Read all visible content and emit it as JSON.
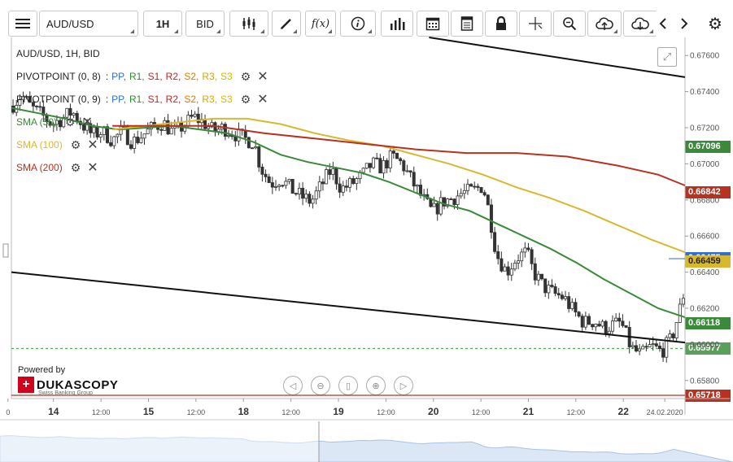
{
  "toolbar": {
    "symbol": "AUD/USD",
    "timeframe": "1H",
    "price_side": "BID",
    "colors": {
      "border": "#c8c8c8"
    }
  },
  "legend": {
    "header": "AUD/USD, 1H, BID",
    "pivot_rows": [
      {
        "name": "PIVOTPOINT (0, 8)",
        "sep": ":",
        "levels": [
          "PP,",
          "R1,",
          "S1,",
          "R2,",
          "S2,",
          "R3,",
          "S3"
        ]
      },
      {
        "name": "PIVOTPOINT (0, 9)",
        "sep": ":",
        "levels": [
          "PP,",
          "R1,",
          "S1,",
          "R2,",
          "S2,",
          "R3,",
          "S3"
        ]
      }
    ],
    "level_colors": [
      "#2f6fd6",
      "#2e8b2e",
      "#cc2222",
      "#cc2222",
      "#e07b00",
      "#d4a800",
      "#d4b800"
    ],
    "sma_rows": [
      {
        "label": "SMA (50)",
        "color": "#3a8a3a"
      },
      {
        "label": "SMA (100)",
        "color": "#d9b830"
      },
      {
        "label": "SMA (200)",
        "color": "#b83220"
      }
    ]
  },
  "branding": {
    "powered_by": "Powered by",
    "name": "DUKASCOPY",
    "tagline": "Swiss Banking Group"
  },
  "chart_data": {
    "type": "candlestick",
    "title": "AUD/USD, 1H, BID",
    "y_axis": {
      "ticks": [
        0.658,
        0.66,
        0.662,
        0.664,
        0.666,
        0.668,
        0.67,
        0.672,
        0.674,
        0.676
      ],
      "tick_labels": [
        "0.65800",
        "0.66000",
        "0.66200",
        "0.66400",
        "0.66600",
        "0.66800",
        "0.67000",
        "0.67200",
        "0.67400",
        "0.67600"
      ],
      "range": [
        0.657,
        0.677
      ]
    },
    "x_axis": {
      "labels": [
        {
          "label": "0",
          "t": -1.0,
          "bold": false
        },
        {
          "label": "14",
          "t": 12.5,
          "bold": true
        },
        {
          "label": "12:00",
          "t": 26.6,
          "bold": false
        },
        {
          "label": "15",
          "t": 40.7,
          "bold": true
        },
        {
          "label": "12:00",
          "t": 54.8,
          "bold": false
        },
        {
          "label": "18",
          "t": 68.9,
          "bold": true
        },
        {
          "label": "12:00",
          "t": 83.0,
          "bold": false
        },
        {
          "label": "19",
          "t": 97.1,
          "bold": true
        },
        {
          "label": "12:00",
          "t": 111.2,
          "bold": false
        },
        {
          "label": "20",
          "t": 125.3,
          "bold": true
        },
        {
          "label": "12:00",
          "t": 139.4,
          "bold": false
        },
        {
          "label": "21",
          "t": 153.5,
          "bold": true
        },
        {
          "label": "12:00",
          "t": 167.6,
          "bold": false
        },
        {
          "label": "22",
          "t": 181.7,
          "bold": true
        },
        {
          "label": "24.02.2020",
          "t": 194.0,
          "bold": false
        }
      ],
      "range": [
        0,
        200
      ]
    },
    "price_tags": [
      {
        "value": 0.67096,
        "label": "0.67096",
        "color": "#3a8a3a"
      },
      {
        "value": 0.66842,
        "label": "0.66842",
        "color": "#b83220"
      },
      {
        "value": 0.66475,
        "label": "0.66475",
        "color": "#2f6fd6"
      },
      {
        "value": 0.66459,
        "label": "0.66459",
        "color": "#d9b830"
      },
      {
        "value": 0.66118,
        "label": "0.66118",
        "color": "#3a8a3a"
      },
      {
        "value": 0.65977,
        "label": "0.65977",
        "color": "#5aa05a"
      },
      {
        "value": 0.65718,
        "label": "0.65718",
        "color": "#b83220"
      }
    ],
    "sma_series": [
      {
        "name": "SMA (50)",
        "color": "#3a8a3a",
        "points": [
          [
            0,
            0.6731
          ],
          [
            8,
            0.6728
          ],
          [
            16,
            0.6725
          ],
          [
            24,
            0.6721
          ],
          [
            32,
            0.6719
          ],
          [
            40,
            0.672
          ],
          [
            48,
            0.6721
          ],
          [
            56,
            0.6719
          ],
          [
            64,
            0.6717
          ],
          [
            72,
            0.6712
          ],
          [
            80,
            0.6705
          ],
          [
            88,
            0.6701
          ],
          [
            96,
            0.6698
          ],
          [
            104,
            0.6695
          ],
          [
            112,
            0.669
          ],
          [
            120,
            0.6684
          ],
          [
            128,
            0.6678
          ],
          [
            136,
            0.6674
          ],
          [
            144,
            0.6667
          ],
          [
            152,
            0.666
          ],
          [
            160,
            0.6653
          ],
          [
            168,
            0.6645
          ],
          [
            176,
            0.6636
          ],
          [
            184,
            0.6628
          ],
          [
            192,
            0.662
          ],
          [
            200,
            0.6615
          ]
        ]
      },
      {
        "name": "SMA (100)",
        "color": "#d9b830",
        "points": [
          [
            30,
            0.6719
          ],
          [
            40,
            0.6721
          ],
          [
            50,
            0.6723
          ],
          [
            60,
            0.6725
          ],
          [
            70,
            0.6725
          ],
          [
            80,
            0.6722
          ],
          [
            90,
            0.6717
          ],
          [
            100,
            0.6713
          ],
          [
            110,
            0.671
          ],
          [
            120,
            0.6705
          ],
          [
            130,
            0.67
          ],
          [
            140,
            0.6694
          ],
          [
            150,
            0.6687
          ],
          [
            160,
            0.6681
          ],
          [
            170,
            0.6674
          ],
          [
            180,
            0.6666
          ],
          [
            190,
            0.6658
          ],
          [
            200,
            0.6651
          ]
        ]
      },
      {
        "name": "SMA (200)",
        "color": "#b83220",
        "points": [
          [
            30,
            0.6721
          ],
          [
            45,
            0.6721
          ],
          [
            60,
            0.6721
          ],
          [
            75,
            0.6717
          ],
          [
            90,
            0.6714
          ],
          [
            105,
            0.6711
          ],
          [
            120,
            0.6708
          ],
          [
            135,
            0.6706
          ],
          [
            150,
            0.6706
          ],
          [
            165,
            0.6704
          ],
          [
            180,
            0.6699
          ],
          [
            192,
            0.6694
          ],
          [
            200,
            0.6688
          ]
        ]
      }
    ],
    "trendlines": [
      {
        "from": [
          124,
          0.677
        ],
        "to": [
          200,
          0.6748
        ],
        "color": "#111111"
      },
      {
        "from": [
          0,
          0.664
        ],
        "to": [
          200,
          0.6601
        ],
        "color": "#111111"
      }
    ],
    "horizontal_lines": [
      {
        "value": 0.65718,
        "color": "#b83220",
        "style": "solid"
      },
      {
        "value": 0.65977,
        "color": "#5aa05a",
        "style": "dashed"
      }
    ],
    "close_path": [
      [
        0,
        0.6732
      ],
      [
        3,
        0.6738
      ],
      [
        6,
        0.6731
      ],
      [
        9,
        0.6727
      ],
      [
        12,
        0.6722
      ],
      [
        15,
        0.6725
      ],
      [
        18,
        0.6729
      ],
      [
        21,
        0.6722
      ],
      [
        24,
        0.6716
      ],
      [
        27,
        0.6718
      ],
      [
        30,
        0.6713
      ],
      [
        33,
        0.6718
      ],
      [
        36,
        0.6712
      ],
      [
        39,
        0.6716
      ],
      [
        42,
        0.672
      ],
      [
        45,
        0.6723
      ],
      [
        48,
        0.6717
      ],
      [
        51,
        0.6721
      ],
      [
        54,
        0.6726
      ],
      [
        57,
        0.6723
      ],
      [
        60,
        0.6718
      ],
      [
        63,
        0.672
      ],
      [
        66,
        0.6717
      ],
      [
        69,
        0.6714
      ],
      [
        72,
        0.6712
      ],
      [
        74,
        0.6698
      ],
      [
        77,
        0.6689
      ],
      [
        80,
        0.6692
      ],
      [
        83,
        0.6686
      ],
      [
        86,
        0.6682
      ],
      [
        89,
        0.6679
      ],
      [
        92,
        0.6688
      ],
      [
        95,
        0.6697
      ],
      [
        98,
        0.6686
      ],
      [
        101,
        0.6689
      ],
      [
        104,
        0.6693
      ],
      [
        107,
        0.67
      ],
      [
        110,
        0.6698
      ],
      [
        113,
        0.6704
      ],
      [
        116,
        0.67
      ],
      [
        119,
        0.669
      ],
      [
        122,
        0.6681
      ],
      [
        125,
        0.6673
      ],
      [
        128,
        0.6679
      ],
      [
        131,
        0.6681
      ],
      [
        134,
        0.6684
      ],
      [
        137,
        0.6685
      ],
      [
        140,
        0.6688
      ],
      [
        142,
        0.6672
      ],
      [
        144,
        0.665
      ],
      [
        147,
        0.664
      ],
      [
        150,
        0.6648
      ],
      [
        153,
        0.6651
      ],
      [
        155,
        0.664
      ],
      [
        158,
        0.6632
      ],
      [
        161,
        0.6628
      ],
      [
        164,
        0.6626
      ],
      [
        167,
        0.6618
      ],
      [
        170,
        0.6612
      ],
      [
        173,
        0.6613
      ],
      [
        176,
        0.6609
      ],
      [
        179,
        0.6611
      ],
      [
        181,
        0.6612
      ],
      [
        184,
        0.6598
      ],
      [
        187,
        0.6594
      ],
      [
        190,
        0.6599
      ],
      [
        193,
        0.6596
      ],
      [
        196,
        0.6603
      ],
      [
        198,
        0.6616
      ],
      [
        200,
        0.6631
      ]
    ]
  }
}
